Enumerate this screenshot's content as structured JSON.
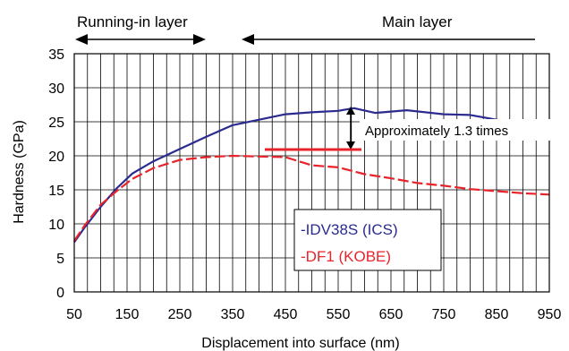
{
  "chart_data": {
    "type": "line",
    "xlabel": "Displacement into surface (nm)",
    "ylabel": "Hardness (GPa)",
    "xlim": [
      50,
      950
    ],
    "ylim": [
      0,
      35
    ],
    "x_ticks": [
      50,
      150,
      250,
      350,
      450,
      550,
      650,
      750,
      850,
      950
    ],
    "y_ticks": [
      0,
      5,
      10,
      15,
      20,
      25,
      30,
      35
    ],
    "grid": true,
    "legend_position": "bottom-center",
    "series": [
      {
        "name": "-IDV38S (ICS)",
        "color": "#2b2b8f",
        "style": "solid",
        "x": [
          50,
          70,
          100,
          130,
          160,
          200,
          250,
          300,
          350,
          400,
          450,
          500,
          550,
          580,
          620,
          680,
          750,
          800,
          850,
          900,
          950
        ],
        "y": [
          7.3,
          9.5,
          12.5,
          15.2,
          17.4,
          19.2,
          21.0,
          22.8,
          24.5,
          25.3,
          26.1,
          26.4,
          26.6,
          27.0,
          26.3,
          26.7,
          26.1,
          26.0,
          25.3,
          24.7,
          24.3
        ]
      },
      {
        "name": "-DF1 (KOBE)",
        "color": "#e8242b",
        "style": "dashed",
        "x": [
          50,
          70,
          100,
          130,
          160,
          200,
          250,
          300,
          350,
          400,
          450,
          500,
          550,
          600,
          650,
          700,
          750,
          800,
          850,
          900,
          950
        ],
        "y": [
          7.5,
          9.8,
          12.8,
          14.8,
          16.6,
          18.2,
          19.4,
          19.8,
          20.0,
          19.9,
          19.8,
          18.6,
          18.3,
          17.3,
          16.7,
          16.0,
          15.6,
          15.1,
          14.8,
          14.5,
          14.3
        ]
      }
    ],
    "annotations": {
      "running_in_layer": "Running-in layer",
      "main_layer": "Main layer",
      "ratio": "Approximately 1.3 times"
    }
  }
}
